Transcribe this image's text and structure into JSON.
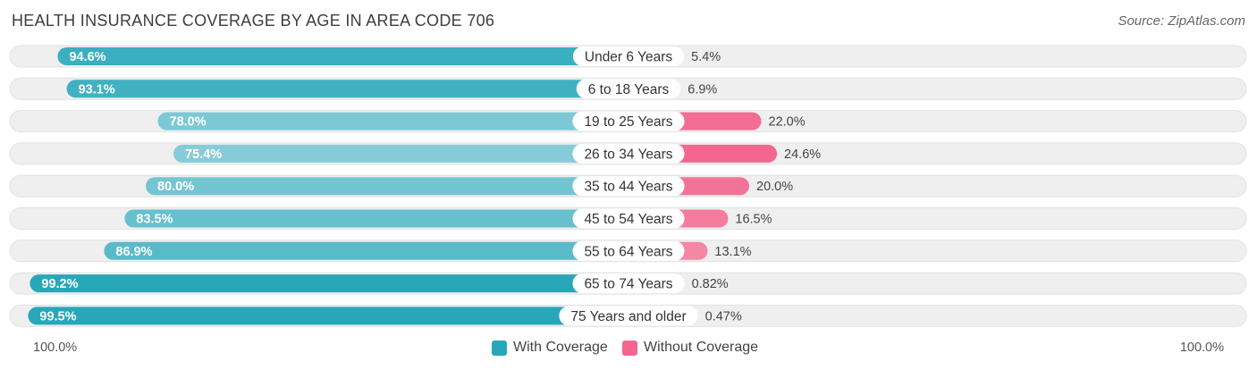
{
  "title": "HEALTH INSURANCE COVERAGE BY AGE IN AREA CODE 706",
  "source": "Source: ZipAtlas.com",
  "colors": {
    "with_dark": "#27a7b9",
    "with_light": "#86ccd8",
    "without_dark": "#f2668f",
    "without_light": "#f7a9c0",
    "row_bg": "#efefef"
  },
  "chart_data": {
    "type": "bar",
    "orientation": "diverging-horizontal",
    "title": "HEALTH INSURANCE COVERAGE BY AGE IN AREA CODE 706",
    "categories": [
      "Under 6 Years",
      "6 to 18 Years",
      "19 to 25 Years",
      "26 to 34 Years",
      "35 to 44 Years",
      "45 to 54 Years",
      "55 to 64 Years",
      "65 to 74 Years",
      "75 Years and older"
    ],
    "series": [
      {
        "name": "With Coverage",
        "values": [
          94.6,
          93.1,
          78.0,
          75.4,
          80.0,
          83.5,
          86.9,
          99.2,
          99.5
        ],
        "labels": [
          "94.6%",
          "93.1%",
          "78.0%",
          "75.4%",
          "80.0%",
          "83.5%",
          "86.9%",
          "99.2%",
          "99.5%"
        ]
      },
      {
        "name": "Without Coverage",
        "values": [
          5.4,
          6.9,
          22.0,
          24.6,
          20.0,
          16.5,
          13.1,
          0.82,
          0.47
        ],
        "labels": [
          "5.4%",
          "6.9%",
          "22.0%",
          "24.6%",
          "20.0%",
          "16.5%",
          "13.1%",
          "0.82%",
          "0.47%"
        ]
      }
    ],
    "axis": {
      "left_label": "100.0%",
      "right_label": "100.0%",
      "max": 100
    },
    "legend": [
      "With Coverage",
      "Without Coverage"
    ]
  }
}
